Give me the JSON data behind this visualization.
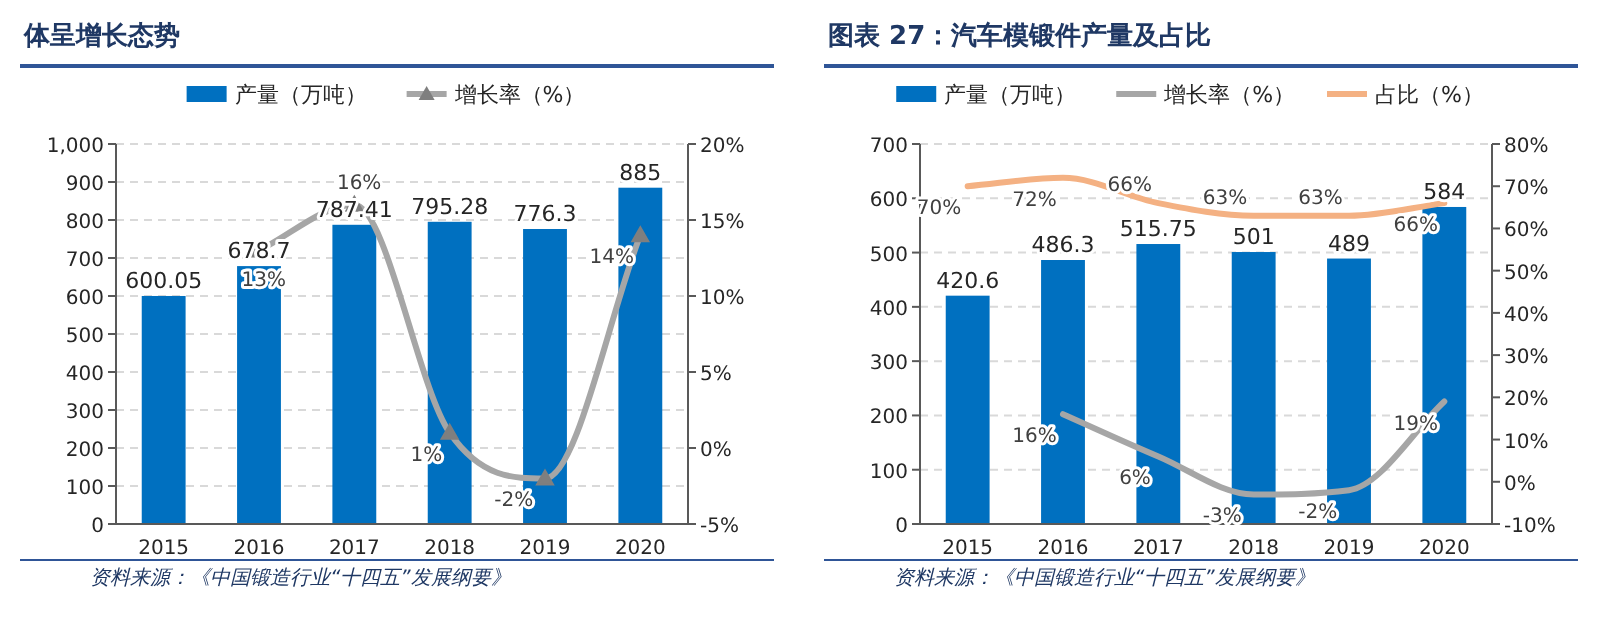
{
  "chart_data": [
    {
      "type": "bar",
      "title": "体呈增长态势",
      "categories": [
        "2015",
        "2016",
        "2017",
        "2018",
        "2019",
        "2020"
      ],
      "series": [
        {
          "name": "产量（万吨）",
          "color": "#0070c0",
          "values": [
            600.05,
            678.7,
            787.41,
            795.28,
            776.3,
            885
          ],
          "value_labels": [
            "600.05",
            "678.7",
            "787.41",
            "795.28",
            "776.3",
            "885"
          ]
        },
        {
          "name": "增长率（%）",
          "type": "line",
          "axis": "y2",
          "color": "#a6a6a6",
          "marker": "triangle",
          "values": [
            null,
            13,
            16,
            1,
            -2,
            14
          ],
          "value_labels": [
            null,
            "13%",
            "16%",
            "1%",
            "-2%",
            "14%"
          ]
        }
      ],
      "ylim": [
        0,
        1000
      ],
      "yticks": [
        0,
        100,
        200,
        300,
        400,
        500,
        600,
        700,
        800,
        900,
        {
          "value": 1000,
          "label": "1,000"
        }
      ],
      "y2lim": [
        -5,
        20
      ],
      "y2ticks": [
        {
          "value": -5,
          "label": "-5%"
        },
        {
          "value": 0,
          "label": "0%"
        },
        {
          "value": 5,
          "label": "5%"
        },
        {
          "value": 10,
          "label": "10%"
        },
        {
          "value": 15,
          "label": "15%"
        },
        {
          "value": 20,
          "label": "20%"
        }
      ],
      "grid": "y",
      "legend": "top",
      "annotations": [
        "资料来源：《中国锻造行业“十四五”发展纲要》"
      ]
    },
    {
      "type": "bar",
      "title": "图表 27：汽车模锻件产量及占比",
      "categories": [
        "2015",
        "2016",
        "2017",
        "2018",
        "2019",
        "2020"
      ],
      "series": [
        {
          "name": "产量（万吨）",
          "color": "#0070c0",
          "values": [
            420.6,
            486.3,
            515.75,
            501,
            489,
            584
          ],
          "value_labels": [
            "420.6",
            "486.3",
            "515.75",
            "501",
            "489",
            "584"
          ]
        },
        {
          "name": "增长率（%）",
          "type": "line",
          "axis": "y2",
          "color": "#a6a6a6",
          "values": [
            null,
            16,
            6,
            -3,
            -2,
            19
          ],
          "value_labels": [
            null,
            "16%",
            "6%",
            "-3%",
            "-2%",
            "19%"
          ]
        },
        {
          "name": "占比（%）",
          "type": "line",
          "axis": "y2",
          "color": "#f4b183",
          "values": [
            70,
            72,
            66,
            63,
            63,
            66
          ],
          "value_labels": [
            "70%",
            "72%",
            "66%",
            "63%",
            "63%",
            "66%"
          ]
        }
      ],
      "ylim": [
        0,
        700
      ],
      "yticks": [
        0,
        100,
        200,
        300,
        400,
        500,
        600,
        700
      ],
      "y2lim": [
        -10,
        80
      ],
      "y2ticks": [
        {
          "value": -10,
          "label": "-10%"
        },
        {
          "value": 0,
          "label": "0%"
        },
        {
          "value": 10,
          "label": "10%"
        },
        {
          "value": 20,
          "label": "20%"
        },
        {
          "value": 30,
          "label": "30%"
        },
        {
          "value": 40,
          "label": "40%"
        },
        {
          "value": 50,
          "label": "50%"
        },
        {
          "value": 60,
          "label": "60%"
        },
        {
          "value": 70,
          "label": "70%"
        },
        {
          "value": 80,
          "label": "80%"
        }
      ],
      "grid": "y",
      "legend": "top",
      "annotations": [
        "资料来源：《中国锻造行业“十四五”发展纲要》"
      ]
    }
  ]
}
